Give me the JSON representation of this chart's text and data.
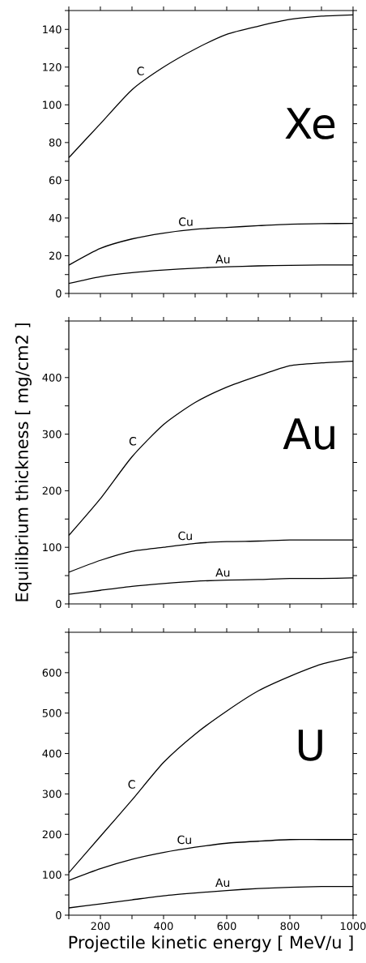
{
  "chart_data": [
    {
      "type": "line",
      "annotations": [
        "Xe"
      ],
      "x": [
        100,
        200,
        300,
        400,
        500,
        600,
        700,
        800,
        900,
        1000
      ],
      "series": [
        {
          "name": "C",
          "color": "#000000",
          "values": [
            72,
            90,
            108,
            120,
            129.6,
            137.4,
            141.7,
            145.3,
            147,
            147.7
          ]
        },
        {
          "name": "Cu",
          "color": "#000000",
          "values": [
            15,
            23.9,
            28.9,
            32,
            34,
            35,
            35.9,
            36.7,
            37,
            37.1
          ]
        },
        {
          "name": "Au",
          "color": "#000000",
          "values": [
            5.3,
            8.9,
            11,
            12.4,
            13.4,
            14.1,
            14.6,
            14.9,
            15.1,
            15.1
          ]
        }
      ],
      "xlim": [
        100,
        1000
      ],
      "ylim": [
        0,
        150
      ],
      "xticks": [
        {
          "value": 100,
          "label": null
        },
        {
          "value": 200,
          "label": null
        },
        {
          "value": 300,
          "label": null
        },
        {
          "value": 400,
          "label": null
        },
        {
          "value": 500,
          "label": null
        },
        {
          "value": 600,
          "label": null
        },
        {
          "value": 700,
          "label": null
        },
        {
          "value": 800,
          "label": null
        },
        {
          "value": 900,
          "label": null
        },
        {
          "value": 1000,
          "label": null
        }
      ],
      "yticks": [
        0,
        {
          "value": 10,
          "label": null
        },
        20,
        {
          "value": 30,
          "label": null
        },
        40,
        {
          "value": 50,
          "label": null
        },
        60,
        {
          "value": 70,
          "label": null
        },
        80,
        {
          "value": 90,
          "label": null
        },
        100,
        {
          "value": 110,
          "label": null
        },
        120,
        {
          "value": 130,
          "label": null
        },
        140,
        {
          "value": 150,
          "label": null
        }
      ],
      "tick_labels": "y",
      "grid": false
    },
    {
      "type": "line",
      "annotations": [
        "Au"
      ],
      "ylabel": "Equilibrium thickness [ mg/cm2 ]",
      "x": [
        100,
        200,
        300,
        400,
        500,
        600,
        700,
        800,
        900,
        1000
      ],
      "series": [
        {
          "name": "C",
          "color": "#000000",
          "values": [
            121,
            186,
            260,
            317,
            356,
            383,
            403,
            421,
            426,
            429
          ]
        },
        {
          "name": "Cu",
          "color": "#000000",
          "values": [
            56,
            77,
            93,
            100,
            107,
            110,
            111,
            113,
            113,
            113
          ]
        },
        {
          "name": "Au",
          "color": "#000000",
          "values": [
            17,
            24,
            31,
            36,
            40,
            42,
            43,
            45,
            45,
            46
          ]
        }
      ],
      "xlim": [
        100,
        1000
      ],
      "ylim": [
        0,
        500
      ],
      "xticks": [
        {
          "value": 100,
          "label": null
        },
        {
          "value": 200,
          "label": null
        },
        {
          "value": 300,
          "label": null
        },
        {
          "value": 400,
          "label": null
        },
        {
          "value": 500,
          "label": null
        },
        {
          "value": 600,
          "label": null
        },
        {
          "value": 700,
          "label": null
        },
        {
          "value": 800,
          "label": null
        },
        {
          "value": 900,
          "label": null
        },
        {
          "value": 1000,
          "label": null
        }
      ],
      "yticks": [
        0,
        {
          "value": 50,
          "label": null
        },
        100,
        {
          "value": 150,
          "label": null
        },
        200,
        {
          "value": 250,
          "label": null
        },
        300,
        {
          "value": 350,
          "label": null
        },
        400,
        {
          "value": 450,
          "label": null
        },
        {
          "value": 500,
          "label": null
        }
      ],
      "tick_labels": "y",
      "grid": false
    },
    {
      "type": "line",
      "annotations": [
        "U"
      ],
      "xlabel": "Projectile kinetic energy [ MeV/u ]",
      "x": [
        100,
        200,
        300,
        400,
        500,
        600,
        700,
        800,
        900,
        1000
      ],
      "series": [
        {
          "name": "C",
          "color": "#000000",
          "values": [
            105,
            195,
            285,
            378,
            448,
            505,
            555,
            591,
            621,
            639
          ]
        },
        {
          "name": "Cu",
          "color": "#000000",
          "values": [
            86,
            115,
            138,
            155,
            168,
            178,
            183,
            187,
            187,
            187
          ]
        },
        {
          "name": "Au",
          "color": "#000000",
          "values": [
            18,
            28,
            38,
            48,
            55,
            61,
            66,
            69,
            71,
            71
          ]
        }
      ],
      "xlim": [
        100,
        1000
      ],
      "ylim": [
        0,
        700
      ],
      "xticks": [
        {
          "value": 100,
          "label": null
        },
        200,
        {
          "value": 300,
          "label": null
        },
        400,
        {
          "value": 500,
          "label": null
        },
        600,
        {
          "value": 700,
          "label": null
        },
        800,
        {
          "value": 900,
          "label": null
        },
        1000
      ],
      "yticks": [
        0,
        {
          "value": 50,
          "label": null
        },
        100,
        {
          "value": 150,
          "label": null
        },
        200,
        {
          "value": 250,
          "label": null
        },
        300,
        {
          "value": 350,
          "label": null
        },
        400,
        {
          "value": 450,
          "label": null
        },
        500,
        {
          "value": 550,
          "label": null
        },
        600,
        {
          "value": 650,
          "label": null
        },
        {
          "value": 700,
          "label": null
        }
      ],
      "grid": false
    }
  ]
}
